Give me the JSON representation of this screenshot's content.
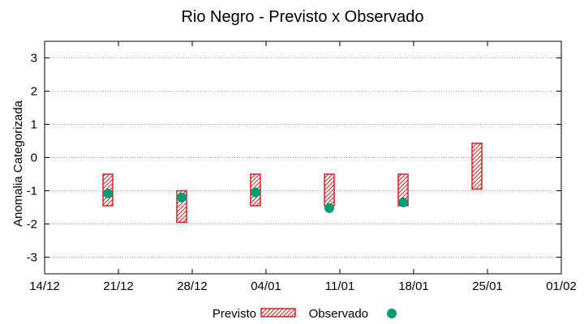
{
  "chart_data": {
    "type": "range-bar-with-points",
    "title": "Rio Negro - Previsto x Observado",
    "xlabel": "",
    "ylabel": "Anomalia Categorizada",
    "ylim": [
      -3.5,
      3.5
    ],
    "y_ticks": [
      -3,
      -2,
      -1,
      0,
      1,
      2,
      3
    ],
    "y_tick_labels": [
      "-3",
      "-2",
      "-1",
      "0",
      "1",
      "2",
      "3"
    ],
    "x_range_days": [
      0,
      49
    ],
    "x_ticks": [
      {
        "day": 0,
        "label": "14/12"
      },
      {
        "day": 7,
        "label": "21/12"
      },
      {
        "day": 14,
        "label": "28/12"
      },
      {
        "day": 21,
        "label": "04/01"
      },
      {
        "day": 28,
        "label": "11/01"
      },
      {
        "day": 35,
        "label": "18/01"
      },
      {
        "day": 42,
        "label": "25/01"
      },
      {
        "day": 49,
        "label": "01/02"
      }
    ],
    "grid": "horizontal-dotted",
    "series": [
      {
        "name": "Previsto",
        "kind": "range",
        "color": "#d62020",
        "points": [
          {
            "day": 6,
            "low": -1.45,
            "high": -0.5
          },
          {
            "day": 13,
            "low": -1.95,
            "high": -1.0
          },
          {
            "day": 20,
            "low": -1.45,
            "high": -0.5
          },
          {
            "day": 27,
            "low": -1.45,
            "high": -0.5
          },
          {
            "day": 34,
            "low": -1.45,
            "high": -0.5
          },
          {
            "day": 41,
            "low": -0.95,
            "high": 0.43
          }
        ]
      },
      {
        "name": "Observado",
        "kind": "point",
        "color": "#009b77",
        "points": [
          {
            "day": 6,
            "value": -1.08
          },
          {
            "day": 13,
            "value": -1.2
          },
          {
            "day": 20,
            "value": -1.05
          },
          {
            "day": 27,
            "value": -1.52
          },
          {
            "day": 34,
            "value": -1.35
          }
        ]
      }
    ],
    "legend": {
      "placement": "bottom-center",
      "previsto_label": "Previsto",
      "observado_label": "Observado"
    }
  }
}
